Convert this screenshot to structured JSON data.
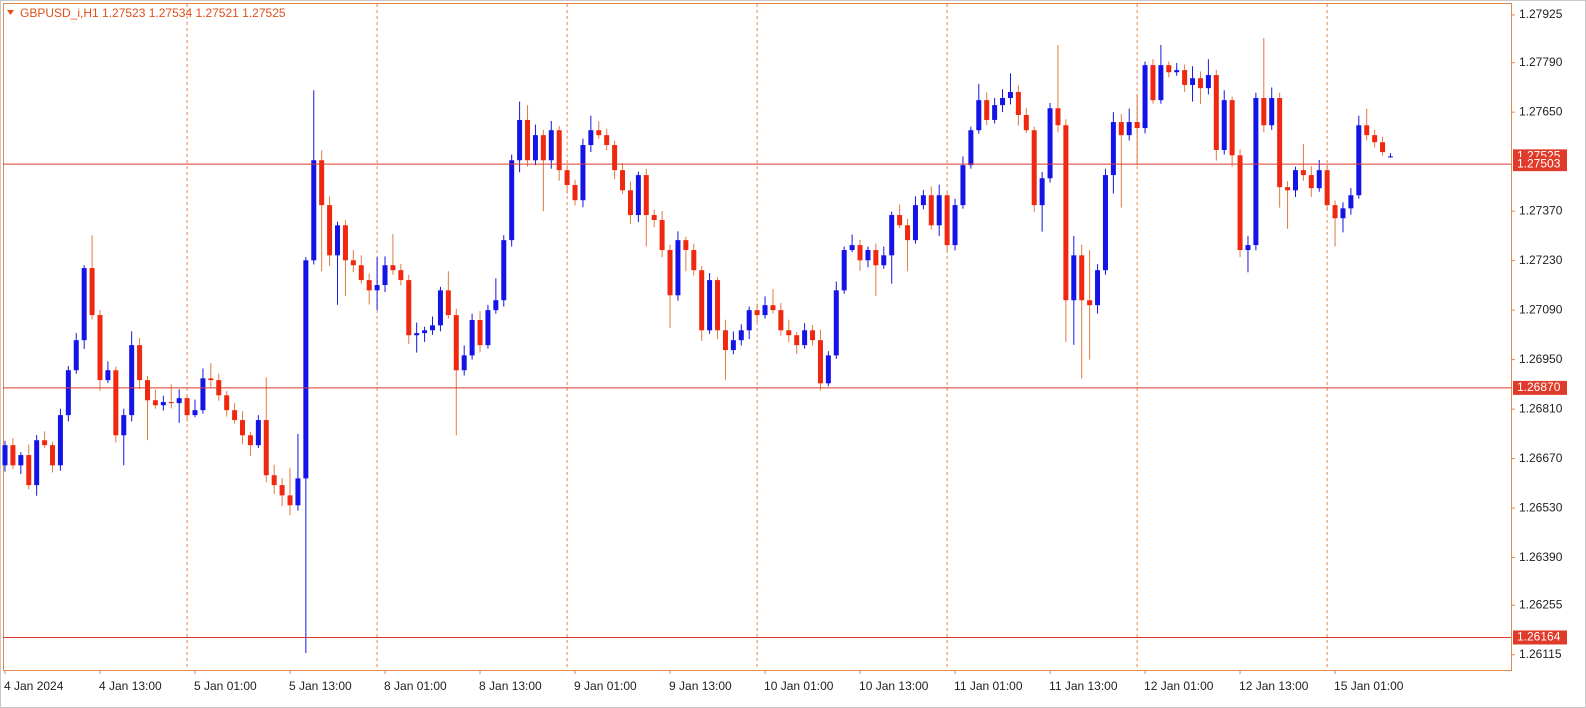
{
  "chart_data": {
    "type": "candlestick",
    "title": "GBPUSD_i,H1  1.27523 1.27534 1.27521 1.27525",
    "up_color": "#1414e6",
    "down_color": "#f0280f",
    "down_wick_color": "#e07a40",
    "level_color": "#e03a2a",
    "ylim": [
      1.26072,
      1.27956
    ],
    "yticks": [
      1.27925,
      {
        "value": 1.2779,
        "label": "1.27790"
      },
      {
        "value": 1.2765,
        "label": "1.27650"
      },
      {
        "value": 1.2737,
        "label": "1.27370"
      },
      {
        "value": 1.2723,
        "label": "1.27230"
      },
      {
        "value": 1.2709,
        "label": "1.27090"
      },
      {
        "value": 1.2695,
        "label": "1.26950"
      },
      {
        "value": 1.2681,
        "label": "1.26810"
      },
      {
        "value": 1.2667,
        "label": "1.26670"
      },
      {
        "value": 1.2653,
        "label": "1.26530"
      },
      {
        "value": 1.2639,
        "label": "1.26390"
      },
      1.26255,
      1.26115
    ],
    "levels": [
      1.27503,
      {
        "value": 1.2687,
        "label": "1.26870"
      },
      1.26164
    ],
    "bid": 1.27525,
    "categories": [
      "4 Jan 2024",
      null,
      null,
      null,
      null,
      null,
      null,
      null,
      null,
      null,
      null,
      null,
      "4 Jan 13:00",
      null,
      null,
      null,
      null,
      null,
      null,
      null,
      null,
      null,
      null,
      null,
      "5 Jan 01:00",
      null,
      null,
      null,
      null,
      null,
      null,
      null,
      null,
      null,
      null,
      null,
      "5 Jan 13:00",
      null,
      null,
      null,
      null,
      null,
      null,
      null,
      null,
      null,
      null,
      null,
      "8 Jan 01:00",
      null,
      null,
      null,
      null,
      null,
      null,
      null,
      null,
      null,
      null,
      null,
      "8 Jan 13:00",
      null,
      null,
      null,
      null,
      null,
      null,
      null,
      null,
      null,
      null,
      null,
      "9 Jan 01:00",
      null,
      null,
      null,
      null,
      null,
      null,
      null,
      null,
      null,
      null,
      null,
      "9 Jan 13:00",
      null,
      null,
      null,
      null,
      null,
      null,
      null,
      null,
      null,
      null,
      null,
      "10 Jan 01:00",
      null,
      null,
      null,
      null,
      null,
      null,
      null,
      null,
      null,
      null,
      null,
      "10 Jan 13:00",
      null,
      null,
      null,
      null,
      null,
      null,
      null,
      null,
      null,
      null,
      null,
      "11 Jan 01:00",
      null,
      null,
      null,
      null,
      null,
      null,
      null,
      null,
      null,
      null,
      null,
      "11 Jan 13:00",
      null,
      null,
      null,
      null,
      null,
      null,
      null,
      null,
      null,
      null,
      null,
      "12 Jan 01:00",
      null,
      null,
      null,
      null,
      null,
      null,
      null,
      null,
      null,
      null,
      null,
      "12 Jan 13:00",
      null,
      null,
      null,
      null,
      null,
      null,
      null,
      null,
      null,
      null,
      null,
      "15 Jan 01:00",
      null,
      null,
      null,
      null,
      null,
      null,
      null
    ],
    "candles": [
      [
        1.26651,
        1.2672,
        1.26633,
        1.26708
      ],
      [
        1.26708,
        1.26728,
        1.26641,
        1.26651
      ],
      [
        1.26651,
        1.26688,
        1.26626,
        1.2668
      ],
      [
        1.2668,
        1.2671,
        1.26583,
        1.26595
      ],
      [
        1.26595,
        1.26737,
        1.26565,
        1.26722
      ],
      [
        1.26722,
        1.26747,
        1.267,
        1.26708
      ],
      [
        1.26708,
        1.26718,
        1.26631,
        1.26651
      ],
      [
        1.26651,
        1.26811,
        1.26636,
        1.26793
      ],
      [
        1.26793,
        1.26932,
        1.26775,
        1.2692
      ],
      [
        1.2692,
        1.27025,
        1.2691,
        1.27005
      ],
      [
        1.27005,
        1.27217,
        1.2698,
        1.27209
      ],
      [
        1.27209,
        1.27302,
        1.27064,
        1.27076
      ],
      [
        1.27076,
        1.27091,
        1.26862,
        1.26892
      ],
      [
        1.26892,
        1.26945,
        1.26884,
        1.2692
      ],
      [
        1.2692,
        1.2693,
        1.26716,
        1.26736
      ],
      [
        1.26736,
        1.26811,
        1.26651,
        1.26793
      ],
      [
        1.26793,
        1.2703,
        1.26775,
        1.26991
      ],
      [
        1.26991,
        1.27011,
        1.26867,
        1.26892
      ],
      [
        1.26892,
        1.26904,
        1.26722,
        1.26835
      ],
      [
        1.26835,
        1.26865,
        1.26811,
        1.26821
      ],
      [
        1.26821,
        1.26848,
        1.26806,
        1.2683
      ],
      [
        1.2683,
        1.2688,
        1.26812,
        1.26827
      ],
      [
        1.26827,
        1.26866,
        1.26771,
        1.26841
      ],
      [
        1.26841,
        1.26851,
        1.26775,
        1.26793
      ],
      [
        1.26793,
        1.26837,
        1.26787,
        1.26807
      ],
      [
        1.26807,
        1.26925,
        1.26797,
        1.26897
      ],
      [
        1.26897,
        1.2694,
        1.26872,
        1.26892
      ],
      [
        1.26892,
        1.2691,
        1.26834,
        1.26849
      ],
      [
        1.26849,
        1.26861,
        1.26789,
        1.26807
      ],
      [
        1.26807,
        1.26827,
        1.26769,
        1.26779
      ],
      [
        1.26779,
        1.26804,
        1.26711,
        1.26736
      ],
      [
        1.26736,
        1.26746,
        1.26678,
        1.26708
      ],
      [
        1.26708,
        1.26793,
        1.267,
        1.26779
      ],
      [
        1.26779,
        1.269,
        1.26603,
        1.26623
      ],
      [
        1.26623,
        1.26653,
        1.2657,
        1.26595
      ],
      [
        1.26595,
        1.26615,
        1.26536,
        1.26566
      ],
      [
        1.26566,
        1.26644,
        1.2651,
        1.26538
      ],
      [
        1.26538,
        1.2674,
        1.26523,
        1.26614
      ],
      [
        1.26614,
        1.2724,
        1.2612,
        1.27231
      ],
      [
        1.27231,
        1.27712,
        1.27219,
        1.27514
      ],
      [
        1.27514,
        1.27542,
        1.272,
        1.27387
      ],
      [
        1.27387,
        1.27412,
        1.27215,
        1.27245
      ],
      [
        1.27245,
        1.2734,
        1.27105,
        1.2733
      ],
      [
        1.2733,
        1.27345,
        1.2713,
        1.27231
      ],
      [
        1.27231,
        1.2726,
        1.27197,
        1.27217
      ],
      [
        1.27217,
        1.27245,
        1.27165,
        1.27175
      ],
      [
        1.27175,
        1.27193,
        1.27106,
        1.27146
      ],
      [
        1.27146,
        1.2724,
        1.2709,
        1.27161
      ],
      [
        1.27161,
        1.27242,
        1.27141,
        1.27217
      ],
      [
        1.27217,
        1.27305,
        1.2719,
        1.27203
      ],
      [
        1.27203,
        1.27221,
        1.2716,
        1.27175
      ],
      [
        1.27175,
        1.2719,
        1.26994,
        1.27019
      ],
      [
        1.27019,
        1.27055,
        1.2697,
        1.27025
      ],
      [
        1.27025,
        1.27043,
        1.27,
        1.27033
      ],
      [
        1.27033,
        1.27072,
        1.2702,
        1.27047
      ],
      [
        1.27047,
        1.27156,
        1.2703,
        1.27146
      ],
      [
        1.27146,
        1.272,
        1.27066,
        1.27076
      ],
      [
        1.27076,
        1.27094,
        1.26736,
        1.2692
      ],
      [
        1.2692,
        1.2699,
        1.26905,
        1.26962
      ],
      [
        1.26962,
        1.2708,
        1.2695,
        1.27062
      ],
      [
        1.27062,
        1.27087,
        1.26971,
        1.26991
      ],
      [
        1.26991,
        1.27105,
        1.26981,
        1.2709
      ],
      [
        1.2709,
        1.2718,
        1.2708,
        1.27118
      ],
      [
        1.27118,
        1.27302,
        1.271,
        1.27288
      ],
      [
        1.27288,
        1.2753,
        1.2727,
        1.27514
      ],
      [
        1.27514,
        1.2768,
        1.2748,
        1.27628
      ],
      [
        1.27628,
        1.2767,
        1.27496,
        1.27514
      ],
      [
        1.27514,
        1.27615,
        1.275,
        1.27585
      ],
      [
        1.27585,
        1.276,
        1.2737,
        1.27514
      ],
      [
        1.27514,
        1.27625,
        1.2749,
        1.27599
      ],
      [
        1.27599,
        1.27611,
        1.27456,
        1.27486
      ],
      [
        1.27486,
        1.275,
        1.2742,
        1.27444
      ],
      [
        1.27444,
        1.27459,
        1.27386,
        1.27401
      ],
      [
        1.27401,
        1.27575,
        1.27381,
        1.27557
      ],
      [
        1.27557,
        1.2764,
        1.27537,
        1.27599
      ],
      [
        1.27599,
        1.27624,
        1.27575,
        1.27585
      ],
      [
        1.27585,
        1.27603,
        1.27542,
        1.27557
      ],
      [
        1.27557,
        1.27569,
        1.27461,
        1.27486
      ],
      [
        1.27486,
        1.27506,
        1.27419,
        1.27429
      ],
      [
        1.27429,
        1.27454,
        1.27334,
        1.27359
      ],
      [
        1.27359,
        1.27482,
        1.27339,
        1.27472
      ],
      [
        1.27472,
        1.2749,
        1.2727,
        1.27359
      ],
      [
        1.27359,
        1.27375,
        1.27325,
        1.27345
      ],
      [
        1.27345,
        1.2737,
        1.2724,
        1.2726
      ],
      [
        1.2726,
        1.27275,
        1.2704,
        1.27132
      ],
      [
        1.27132,
        1.27313,
        1.27117,
        1.27288
      ],
      [
        1.27288,
        1.27298,
        1.272,
        1.2726
      ],
      [
        1.2726,
        1.27278,
        1.27188,
        1.27203
      ],
      [
        1.27203,
        1.27215,
        1.27003,
        1.27033
      ],
      [
        1.27033,
        1.27195,
        1.27023,
        1.27175
      ],
      [
        1.27175,
        1.27183,
        1.27008,
        1.27033
      ],
      [
        1.27033,
        1.27063,
        1.26892,
        1.26977
      ],
      [
        1.26977,
        1.2703,
        1.26965,
        1.27005
      ],
      [
        1.27005,
        1.2705,
        1.2699,
        1.27033
      ],
      [
        1.27033,
        1.271,
        1.27008,
        1.2709
      ],
      [
        1.2709,
        1.27108,
        1.27056,
        1.27076
      ],
      [
        1.27076,
        1.27129,
        1.27066,
        1.27104
      ],
      [
        1.27104,
        1.2715,
        1.2708,
        1.2709
      ],
      [
        1.2709,
        1.2711,
        1.27018,
        1.27033
      ],
      [
        1.27033,
        1.27063,
        1.26999,
        1.27019
      ],
      [
        1.27019,
        1.27027,
        1.26966,
        1.26991
      ],
      [
        1.26991,
        1.27053,
        1.26981,
        1.27033
      ],
      [
        1.27033,
        1.27048,
        1.2699,
        1.27005
      ],
      [
        1.27005,
        1.27035,
        1.26863,
        1.26883
      ],
      [
        1.26883,
        1.26974,
        1.26875,
        1.26962
      ],
      [
        1.26962,
        1.27171,
        1.26952,
        1.27146
      ],
      [
        1.27146,
        1.2727,
        1.27136,
        1.2726
      ],
      [
        1.2726,
        1.27304,
        1.27254,
        1.27274
      ],
      [
        1.27274,
        1.27289,
        1.27201,
        1.27231
      ],
      [
        1.27231,
        1.2727,
        1.27211,
        1.2726
      ],
      [
        1.2726,
        1.27278,
        1.2713,
        1.27217
      ],
      [
        1.27217,
        1.2727,
        1.27207,
        1.27245
      ],
      [
        1.27245,
        1.27369,
        1.27165,
        1.27359
      ],
      [
        1.27359,
        1.27389,
        1.27322,
        1.2733
      ],
      [
        1.2733,
        1.27348,
        1.272,
        1.27288
      ],
      [
        1.27288,
        1.27412,
        1.27278,
        1.27387
      ],
      [
        1.27387,
        1.2743,
        1.27375,
        1.27415
      ],
      [
        1.27415,
        1.2744,
        1.27318,
        1.2733
      ],
      [
        1.2733,
        1.27445,
        1.273,
        1.27415
      ],
      [
        1.27415,
        1.27423,
        1.27254,
        1.27274
      ],
      [
        1.27274,
        1.27405,
        1.27259,
        1.27387
      ],
      [
        1.27387,
        1.27525,
        1.27377,
        1.275
      ],
      [
        1.275,
        1.27609,
        1.2749,
        1.27599
      ],
      [
        1.27599,
        1.2773,
        1.27589,
        1.27684
      ],
      [
        1.27684,
        1.27706,
        1.27613,
        1.27628
      ],
      [
        1.27628,
        1.2769,
        1.27618,
        1.2767
      ],
      [
        1.2767,
        1.27715,
        1.2765,
        1.2769
      ],
      [
        1.2769,
        1.2776,
        1.27672,
        1.27707
      ],
      [
        1.27707,
        1.27725,
        1.27612,
        1.27642
      ],
      [
        1.27642,
        1.27662,
        1.27591,
        1.27599
      ],
      [
        1.27599,
        1.27609,
        1.27367,
        1.27387
      ],
      [
        1.27387,
        1.27481,
        1.27312,
        1.27463
      ],
      [
        1.27463,
        1.27676,
        1.27451,
        1.27661
      ],
      [
        1.27661,
        1.2784,
        1.27593,
        1.27613
      ],
      [
        1.27613,
        1.2763,
        1.27,
        1.27118
      ],
      [
        1.27118,
        1.273,
        1.26992,
        1.27245
      ],
      [
        1.27245,
        1.27275,
        1.26897,
        1.27118
      ],
      [
        1.27118,
        1.2726,
        1.2695,
        1.27104
      ],
      [
        1.27104,
        1.2722,
        1.2708,
        1.27203
      ],
      [
        1.27203,
        1.2749,
        1.2719,
        1.27472
      ],
      [
        1.27472,
        1.2765,
        1.2742,
        1.27622
      ],
      [
        1.27622,
        1.27645,
        1.2738,
        1.27585
      ],
      [
        1.27585,
        1.2766,
        1.2757,
        1.27622
      ],
      [
        1.27622,
        1.277,
        1.275,
        1.27605
      ],
      [
        1.27605,
        1.27793,
        1.2759,
        1.27783
      ],
      [
        1.27783,
        1.278,
        1.27674,
        1.27684
      ],
      [
        1.27684,
        1.2784,
        1.27674,
        1.27783
      ],
      [
        1.27783,
        1.27793,
        1.27748,
        1.27763
      ],
      [
        1.27763,
        1.27789,
        1.27753,
        1.27769
      ],
      [
        1.27769,
        1.27785,
        1.27707,
        1.27727
      ],
      [
        1.27727,
        1.2778,
        1.2768,
        1.27746
      ],
      [
        1.27746,
        1.27765,
        1.27673,
        1.27718
      ],
      [
        1.27718,
        1.278,
        1.277,
        1.27755
      ],
      [
        1.27755,
        1.2777,
        1.27513,
        1.27543
      ],
      [
        1.27543,
        1.27712,
        1.2753,
        1.27684
      ],
      [
        1.27684,
        1.27694,
        1.27496,
        1.27528
      ],
      [
        1.27528,
        1.27545,
        1.2724,
        1.2726
      ],
      [
        1.2726,
        1.273,
        1.27197,
        1.27274
      ],
      [
        1.27274,
        1.27705,
        1.27259,
        1.2769
      ],
      [
        1.2769,
        1.2786,
        1.27593,
        1.27613
      ],
      [
        1.27613,
        1.2772,
        1.276,
        1.2769
      ],
      [
        1.2769,
        1.27705,
        1.2738,
        1.27438
      ],
      [
        1.27438,
        1.27455,
        1.2732,
        1.27429
      ],
      [
        1.27429,
        1.27496,
        1.2741,
        1.27486
      ],
      [
        1.27486,
        1.2756,
        1.27456,
        1.27472
      ],
      [
        1.27472,
        1.27497,
        1.2741,
        1.27435
      ],
      [
        1.27435,
        1.27515,
        1.27425,
        1.27486
      ],
      [
        1.27486,
        1.275,
        1.27372,
        1.27387
      ],
      [
        1.27387,
        1.274,
        1.2727,
        1.2735
      ],
      [
        1.2735,
        1.27395,
        1.2731,
        1.27378
      ],
      [
        1.27378,
        1.27435,
        1.2736,
        1.27415
      ],
      [
        1.27415,
        1.2764,
        1.27405,
        1.27613
      ],
      [
        1.27613,
        1.2766,
        1.2757,
        1.27585
      ],
      [
        1.27585,
        1.276,
        1.2755,
        1.27565
      ],
      [
        1.27565,
        1.2758,
        1.27527,
        1.27537
      ],
      [
        1.27523,
        1.27534,
        1.27521,
        1.27525
      ]
    ]
  }
}
